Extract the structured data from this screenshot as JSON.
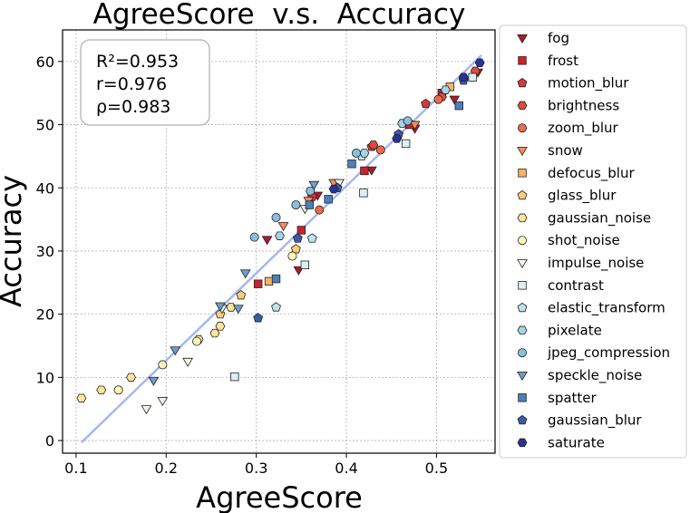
{
  "chart_data": {
    "type": "scatter",
    "title": "AgreeScore  v.s.  Accuracy",
    "xlabel": "AgreeScore",
    "ylabel": "Accuracy",
    "xlim": [
      0.085,
      0.565
    ],
    "ylim": [
      -2,
      65
    ],
    "xticks": [
      0.1,
      0.2,
      0.3,
      0.4,
      0.5
    ],
    "xtick_labels": [
      "0.1",
      "0.2",
      "0.3",
      "0.4",
      "0.5"
    ],
    "yticks": [
      0,
      10,
      20,
      30,
      40,
      50,
      60
    ],
    "ytick_labels": [
      "0",
      "10",
      "20",
      "30",
      "40",
      "50",
      "60"
    ],
    "grid": true,
    "legend_position": "outside-right",
    "stats": [
      "R²=0.953",
      "r=0.976",
      "ρ=0.983"
    ],
    "fit_line": {
      "x": [
        0.106,
        0.55
      ],
      "y": [
        -0.3,
        61.0
      ],
      "color": "#a5b8ee"
    },
    "series": [
      {
        "name": "fog",
        "marker": "triangle-down",
        "color": "#b2182b",
        "points": [
          [
            0.312,
            31.8
          ],
          [
            0.347,
            27.0
          ],
          [
            0.368,
            38.8
          ],
          [
            0.428,
            42.8
          ],
          [
            0.476,
            49.4
          ],
          [
            0.52,
            54.0
          ],
          [
            0.546,
            58.3
          ]
        ]
      },
      {
        "name": "frost",
        "marker": "square",
        "color": "#c8232c",
        "points": [
          [
            0.302,
            24.8
          ],
          [
            0.35,
            33.3
          ],
          [
            0.42,
            42.7
          ],
          [
            0.47,
            50.0
          ],
          [
            0.506,
            55.0
          ]
        ]
      },
      {
        "name": "motion_blur",
        "marker": "pentagon",
        "color": "#d6393a",
        "points": [
          [
            0.362,
            38.6
          ],
          [
            0.428,
            46.5
          ],
          [
            0.488,
            53.3
          ]
        ]
      },
      {
        "name": "brightness",
        "marker": "hexagon",
        "color": "#e04b3c",
        "points": [
          [
            0.43,
            46.8
          ],
          [
            0.506,
            54.4
          ],
          [
            0.543,
            58.5
          ]
        ]
      },
      {
        "name": "zoom_blur",
        "marker": "circle",
        "color": "#ec6a4b",
        "points": [
          [
            0.37,
            36.5
          ],
          [
            0.438,
            46.0
          ],
          [
            0.502,
            54.0
          ]
        ]
      },
      {
        "name": "snow",
        "marker": "triangle-down",
        "color": "#f58e58",
        "points": [
          [
            0.33,
            34.0
          ],
          [
            0.358,
            38.0
          ],
          [
            0.386,
            40.8
          ],
          [
            0.476,
            50.0
          ]
        ]
      },
      {
        "name": "defocus_blur",
        "marker": "square",
        "color": "#f8b26a",
        "points": [
          [
            0.314,
            25.2
          ],
          [
            0.515,
            56.0
          ]
        ]
      },
      {
        "name": "glass_blur",
        "marker": "pentagon",
        "color": "#fbcc7e",
        "points": [
          [
            0.26,
            20.0
          ],
          [
            0.283,
            23.0
          ],
          [
            0.344,
            30.3
          ]
        ]
      },
      {
        "name": "gaussian_noise",
        "marker": "hexagon",
        "color": "#fde49a",
        "points": [
          [
            0.106,
            6.7
          ],
          [
            0.128,
            8.0
          ],
          [
            0.161,
            10.0
          ],
          [
            0.236,
            16.0
          ],
          [
            0.254,
            17.0
          ],
          [
            0.26,
            18.1
          ],
          [
            0.272,
            21.1
          ]
        ]
      },
      {
        "name": "shot_noise",
        "marker": "circle",
        "color": "#fef6b9",
        "points": [
          [
            0.147,
            8.0
          ],
          [
            0.196,
            12.0
          ],
          [
            0.234,
            15.7
          ],
          [
            0.34,
            29.2
          ]
        ]
      },
      {
        "name": "impulse_noise",
        "marker": "triangle-down",
        "color": "#f0f8e5",
        "points": [
          [
            0.178,
            5.0
          ],
          [
            0.196,
            6.3
          ],
          [
            0.224,
            12.5
          ],
          [
            0.262,
            20.9
          ],
          [
            0.354,
            36.7
          ],
          [
            0.392,
            40.8
          ]
        ]
      },
      {
        "name": "contrast",
        "marker": "square",
        "color": "#daf0f5",
        "points": [
          [
            0.276,
            10.1
          ],
          [
            0.354,
            27.8
          ],
          [
            0.419,
            39.2
          ],
          [
            0.466,
            47.0
          ],
          [
            0.54,
            57.5
          ]
        ]
      },
      {
        "name": "elastic_transform",
        "marker": "pentagon",
        "color": "#bde3ed",
        "points": [
          [
            0.322,
            21.1
          ],
          [
            0.362,
            32.0
          ],
          [
            0.417,
            45.0
          ]
        ]
      },
      {
        "name": "pixelate",
        "marker": "hexagon",
        "color": "#a4d4e8",
        "points": [
          [
            0.326,
            32.4
          ],
          [
            0.42,
            45.5
          ],
          [
            0.462,
            50.2
          ],
          [
            0.51,
            55.5
          ]
        ]
      },
      {
        "name": "jpeg_compression",
        "marker": "circle",
        "color": "#87bfdc",
        "points": [
          [
            0.298,
            32.2
          ],
          [
            0.322,
            35.3
          ],
          [
            0.344,
            37.3
          ],
          [
            0.36,
            39.5
          ],
          [
            0.411,
            45.5
          ],
          [
            0.468,
            50.6
          ]
        ]
      },
      {
        "name": "speckle_noise",
        "marker": "triangle-down",
        "color": "#6a9fcb",
        "points": [
          [
            0.186,
            9.5
          ],
          [
            0.21,
            14.3
          ],
          [
            0.26,
            21.3
          ],
          [
            0.28,
            20.9
          ],
          [
            0.288,
            26.5
          ],
          [
            0.364,
            40.5
          ]
        ]
      },
      {
        "name": "spatter",
        "marker": "square",
        "color": "#4c7fbc",
        "points": [
          [
            0.322,
            25.6
          ],
          [
            0.359,
            37.3
          ],
          [
            0.38,
            38.2
          ],
          [
            0.406,
            43.8
          ],
          [
            0.525,
            53.0
          ]
        ]
      },
      {
        "name": "gaussian_blur",
        "marker": "pentagon",
        "color": "#3b5aa8",
        "points": [
          [
            0.302,
            19.4
          ],
          [
            0.346,
            32.0
          ],
          [
            0.39,
            40.0
          ],
          [
            0.458,
            48.5
          ],
          [
            0.53,
            57.0
          ]
        ]
      },
      {
        "name": "saturate",
        "marker": "hexagon",
        "color": "#27339a",
        "points": [
          [
            0.386,
            39.8
          ],
          [
            0.456,
            47.8
          ],
          [
            0.53,
            57.5
          ],
          [
            0.548,
            59.8
          ]
        ]
      }
    ]
  }
}
